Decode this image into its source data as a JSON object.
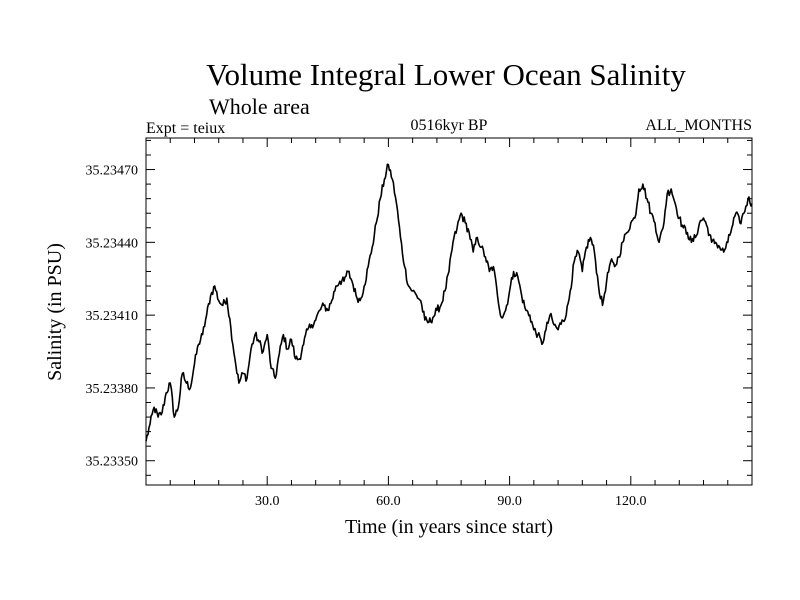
{
  "chart_data": {
    "type": "line",
    "title": "Volume Integral Lower Ocean Salinity",
    "subtitle": "Whole area",
    "experiment": "Expt = teiux",
    "period": "0516kyr BP",
    "months": "ALL_MONTHS",
    "xlabel": "Time (in years since start)",
    "ylabel": "Salinity (in PSU)",
    "xlim": [
      0,
      150
    ],
    "ylim": [
      35.2334,
      35.23483
    ],
    "x_ticks": [
      30,
      60,
      90,
      120
    ],
    "x_tick_labels": [
      "30.0",
      "60.0",
      "90.0",
      "120.0"
    ],
    "y_ticks": [
      35.2335,
      35.2338,
      35.2341,
      35.2344,
      35.2347
    ],
    "y_tick_labels": [
      "35.23350",
      "35.23380",
      "35.23410",
      "35.23440",
      "35.23470"
    ],
    "series": [
      {
        "name": "salinity",
        "x": [
          0,
          1,
          2,
          3,
          4,
          5,
          6,
          7,
          8,
          9,
          10,
          11,
          12,
          13,
          14,
          15,
          16,
          17,
          18,
          19,
          20,
          21,
          22,
          23,
          24,
          25,
          26,
          27,
          28,
          29,
          30,
          31,
          32,
          33,
          34,
          35,
          36,
          37,
          38,
          39,
          40,
          41,
          42,
          43,
          44,
          45,
          46,
          47,
          48,
          49,
          50,
          51,
          52,
          53,
          54,
          55,
          56,
          57,
          58,
          59,
          60,
          61,
          62,
          63,
          64,
          65,
          66,
          67,
          68,
          69,
          70,
          71,
          72,
          73,
          74,
          75,
          76,
          77,
          78,
          79,
          80,
          81,
          82,
          83,
          84,
          85,
          86,
          87,
          88,
          89,
          90,
          91,
          92,
          93,
          94,
          95,
          96,
          97,
          98,
          99,
          100,
          101,
          102,
          103,
          104,
          105,
          106,
          107,
          108,
          109,
          110,
          111,
          112,
          113,
          114,
          115,
          116,
          117,
          118,
          119,
          120,
          121,
          122,
          123,
          124,
          125,
          126,
          127,
          128,
          129,
          130,
          131,
          132,
          133,
          134,
          135,
          136,
          137,
          138,
          139,
          140,
          141,
          142,
          143,
          144,
          145,
          146,
          147,
          148,
          149,
          150
        ],
        "y": [
          35.23358,
          35.23365,
          35.23372,
          35.23368,
          35.2337,
          35.23378,
          35.23382,
          35.23368,
          35.23372,
          35.23386,
          35.23382,
          35.2338,
          35.2339,
          35.23398,
          35.23402,
          35.2341,
          35.23418,
          35.23422,
          35.23416,
          35.23414,
          35.23417,
          35.23405,
          35.23392,
          35.23382,
          35.23386,
          35.23384,
          35.23396,
          35.23402,
          35.23399,
          35.23395,
          35.23402,
          35.23388,
          35.23384,
          35.23394,
          35.23402,
          35.23396,
          35.234,
          35.23392,
          35.23392,
          35.23398,
          35.23404,
          35.23406,
          35.23408,
          35.23412,
          35.23414,
          35.23412,
          35.23416,
          35.23422,
          35.23424,
          35.23424,
          35.23428,
          35.23424,
          35.23418,
          35.23416,
          35.23422,
          35.2343,
          35.23438,
          35.23448,
          35.23458,
          35.23466,
          35.23472,
          35.23466,
          35.23456,
          35.23442,
          35.2343,
          35.23422,
          35.2342,
          35.23418,
          35.23416,
          35.23408,
          35.23407,
          35.23409,
          35.23412,
          35.23414,
          35.2342,
          35.23428,
          35.2344,
          35.23446,
          35.23452,
          35.23448,
          35.23444,
          35.23436,
          35.23442,
          35.23438,
          35.23434,
          35.23428,
          35.2343,
          35.23418,
          35.23409,
          35.23412,
          35.2342,
          35.23428,
          35.23426,
          35.23418,
          35.23412,
          35.2341,
          35.23404,
          35.23402,
          35.23398,
          35.23404,
          35.2341,
          35.23406,
          35.23404,
          35.23408,
          35.2341,
          35.2342,
          35.23432,
          35.23436,
          35.23428,
          35.23438,
          35.23442,
          35.23436,
          35.23422,
          35.23414,
          35.23424,
          35.23432,
          35.2343,
          35.23434,
          35.2344,
          35.23444,
          35.23448,
          35.2345,
          35.23462,
          35.23464,
          35.23458,
          35.23452,
          35.23448,
          35.2344,
          35.23446,
          35.2346,
          35.23462,
          35.23456,
          35.2345,
          35.23446,
          35.23444,
          35.2344,
          35.23442,
          35.23448,
          35.2345,
          35.23446,
          35.2344,
          35.2344,
          35.23438,
          35.23436,
          35.2344,
          35.23446,
          35.23452,
          35.23448,
          35.23452,
          35.23458,
          35.23456
        ]
      }
    ]
  }
}
